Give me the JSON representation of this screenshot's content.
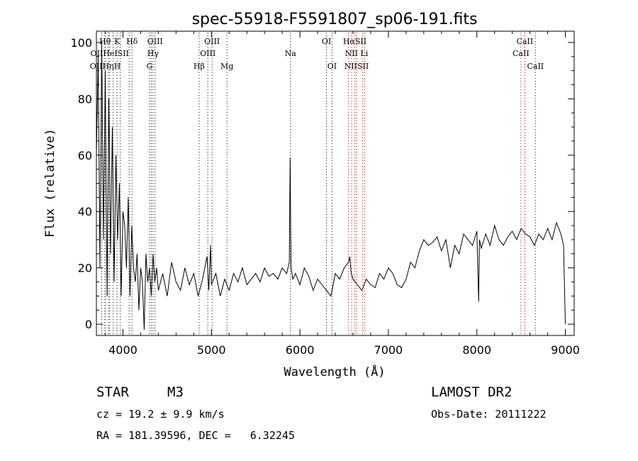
{
  "chart_data": {
    "type": "line",
    "title": "spec-55918-F5591807_sp06-191.fits",
    "xlabel": "Wavelength (Å)",
    "ylabel": "Flux (relative)",
    "xlim": [
      3700,
      9100
    ],
    "ylim": [
      -4,
      104
    ],
    "xticks": [
      4000,
      5000,
      6000,
      7000,
      8000,
      9000
    ],
    "yticks": [
      0,
      20,
      40,
      60,
      80,
      100
    ],
    "grid": false,
    "spectrum": {
      "x": [
        3700,
        3720,
        3740,
        3760,
        3780,
        3800,
        3820,
        3840,
        3860,
        3880,
        3900,
        3920,
        3940,
        3960,
        3980,
        4000,
        4020,
        4040,
        4060,
        4080,
        4100,
        4120,
        4140,
        4160,
        4180,
        4200,
        4220,
        4240,
        4260,
        4280,
        4300,
        4320,
        4340,
        4360,
        4380,
        4400,
        4450,
        4500,
        4550,
        4600,
        4650,
        4700,
        4750,
        4800,
        4850,
        4900,
        4950,
        4970,
        4990,
        5000,
        5050,
        5100,
        5150,
        5200,
        5250,
        5300,
        5350,
        5400,
        5450,
        5500,
        5550,
        5600,
        5650,
        5700,
        5750,
        5800,
        5850,
        5880,
        5890,
        5895,
        5900,
        5920,
        5950,
        6000,
        6050,
        6100,
        6150,
        6200,
        6250,
        6300,
        6350,
        6400,
        6450,
        6500,
        6550,
        6563,
        6580,
        6600,
        6650,
        6700,
        6750,
        6800,
        6850,
        6900,
        6950,
        7000,
        7050,
        7100,
        7150,
        7200,
        7250,
        7300,
        7350,
        7400,
        7450,
        7500,
        7550,
        7600,
        7650,
        7700,
        7750,
        7800,
        7850,
        7900,
        7950,
        8000,
        8020,
        8030,
        8050,
        8100,
        8150,
        8200,
        8250,
        8300,
        8350,
        8400,
        8450,
        8500,
        8550,
        8600,
        8650,
        8700,
        8750,
        8800,
        8850,
        8900,
        8950,
        8980,
        9000
      ],
      "y": [
        60,
        95,
        20,
        100,
        30,
        90,
        10,
        80,
        25,
        70,
        15,
        60,
        30,
        50,
        10,
        40,
        35,
        20,
        45,
        10,
        35,
        20,
        15,
        25,
        5,
        20,
        15,
        -2,
        25,
        15,
        20,
        10,
        25,
        15,
        20,
        12,
        18,
        10,
        22,
        15,
        12,
        20,
        14,
        18,
        10,
        16,
        24,
        12,
        28,
        14,
        18,
        10,
        16,
        12,
        18,
        15,
        20,
        14,
        16,
        18,
        15,
        20,
        17,
        18,
        16,
        20,
        18,
        22,
        59,
        36,
        20,
        16,
        18,
        14,
        20,
        17,
        12,
        16,
        14,
        12,
        10,
        18,
        16,
        20,
        22,
        24,
        18,
        16,
        14,
        12,
        16,
        14,
        13,
        18,
        16,
        20,
        18,
        14,
        13,
        16,
        22,
        20,
        26,
        30,
        28,
        29,
        31,
        26,
        30,
        20,
        28,
        25,
        32,
        30,
        28,
        33,
        8,
        30,
        27,
        32,
        28,
        35,
        30,
        28,
        31,
        33,
        30,
        34,
        32,
        31,
        28,
        32,
        30,
        34,
        30,
        36,
        32,
        28,
        0
      ]
    },
    "lines": [
      {
        "name": "Hθ",
        "x": 3797,
        "row": 1,
        "color": "#000000"
      },
      {
        "name": "K",
        "x": 3933,
        "row": 1,
        "color": "#000000"
      },
      {
        "name": "Hδ",
        "x": 4102,
        "row": 1,
        "color": "#000000"
      },
      {
        "name": "OIII",
        "x": 4363,
        "row": 1,
        "color": "#000000"
      },
      {
        "name": "OIII",
        "x": 5007,
        "row": 1,
        "color": "#000000"
      },
      {
        "name": "OI",
        "x": 6300,
        "row": 1,
        "color": "#000000"
      },
      {
        "name": "HαSII",
        "x": 6620,
        "row": 1,
        "color": "#c00000"
      },
      {
        "name": "CaII",
        "x": 8542,
        "row": 1,
        "color": "#c00000"
      },
      {
        "name": "OIIHeISII",
        "x": 3850,
        "row": 2,
        "color": "#000000"
      },
      {
        "name": "Hγ",
        "x": 4340,
        "row": 2,
        "color": "#000000"
      },
      {
        "name": "OIII",
        "x": 4959,
        "row": 2,
        "color": "#000000"
      },
      {
        "name": "Na",
        "x": 5893,
        "row": 2,
        "color": "#000000"
      },
      {
        "name": "NII Li",
        "x": 6640,
        "row": 2,
        "color": "#c00000"
      },
      {
        "name": "CaII",
        "x": 8498,
        "row": 2,
        "color": "#c00000"
      },
      {
        "name": "OIIHηH",
        "x": 3800,
        "row": 3,
        "color": "#000000"
      },
      {
        "name": "G",
        "x": 4300,
        "row": 3,
        "color": "#000000"
      },
      {
        "name": "Hβ",
        "x": 4861,
        "row": 3,
        "color": "#000000"
      },
      {
        "name": "Mg",
        "x": 5175,
        "row": 3,
        "color": "#000000"
      },
      {
        "name": "OI",
        "x": 6363,
        "row": 3,
        "color": "#000000"
      },
      {
        "name": "NIISII",
        "x": 6640,
        "row": 3,
        "color": "#c00000"
      },
      {
        "name": "CaII",
        "x": 8662,
        "row": 3,
        "color": "#c00000"
      }
    ],
    "extra_dotted_lines": [
      {
        "x": 3760,
        "color": "#000000"
      },
      {
        "x": 3835,
        "color": "#000000"
      },
      {
        "x": 3889,
        "color": "#000000"
      },
      {
        "x": 3970,
        "color": "#000000"
      },
      {
        "x": 4070,
        "color": "#000000"
      },
      {
        "x": 4320,
        "color": "#000000"
      },
      {
        "x": 6548,
        "color": "#c00000"
      },
      {
        "x": 6584,
        "color": "#c00000"
      },
      {
        "x": 6708,
        "color": "#c00000"
      },
      {
        "x": 6731,
        "color": "#c00000"
      },
      {
        "x": 8542,
        "color": "#c00000"
      },
      {
        "x": 8662,
        "color": "#c00000"
      }
    ]
  },
  "info": {
    "class": "STAR",
    "subclass": "M3",
    "survey": "LAMOST DR2",
    "cz": "cz = 19.2 ± 9.9 km/s",
    "obs_date": "Obs-Date: 20111222",
    "radec": "RA = 181.39596, DEC =   6.32245"
  }
}
